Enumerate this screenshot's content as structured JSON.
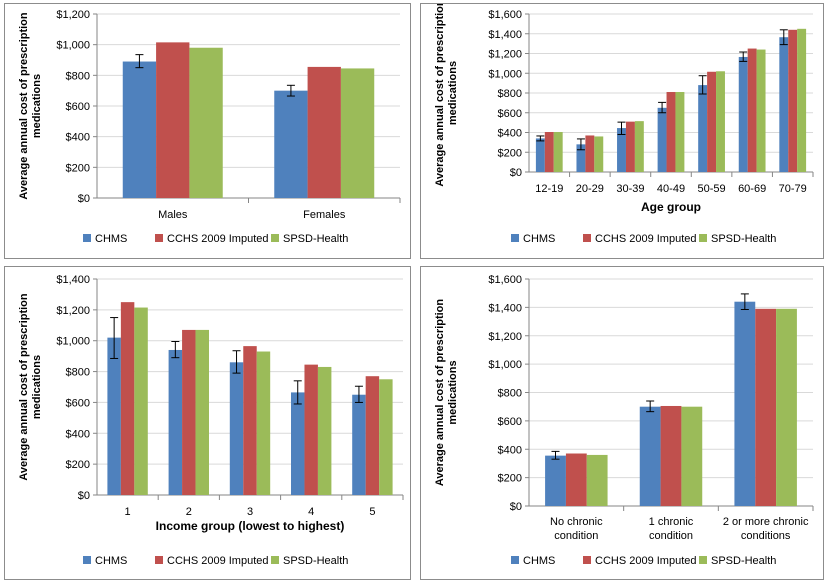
{
  "legend": [
    "CHMS",
    "CCHS 2009 Imputed",
    "SPSD-Health"
  ],
  "colors": {
    "CHMS": "#4f81bd",
    "CCHS 2009 Imputed": "#c0504d",
    "SPSD-Health": "#9bbb59",
    "axis": "#868686",
    "grid": "#d9d9d9",
    "text": "#000000"
  },
  "chart_data": [
    {
      "type": "bar",
      "title": "",
      "ylabel": "Average annual cost of prescription medications",
      "xlabel": "",
      "ylim": [
        0,
        1200
      ],
      "yticks": [
        0,
        200,
        400,
        600,
        800,
        1000,
        1200
      ],
      "ytick_labels": [
        "$0",
        "$200",
        "$400",
        "$600",
        "$800",
        "$1,000",
        "$1,200"
      ],
      "categories": [
        "Males",
        "Females"
      ],
      "series": [
        {
          "name": "CHMS",
          "values": [
            890,
            700
          ],
          "err_low": [
            850,
            665
          ],
          "err_high": [
            935,
            735
          ]
        },
        {
          "name": "CCHS 2009 Imputed",
          "values": [
            1015,
            855
          ]
        },
        {
          "name": "SPSD-Health",
          "values": [
            980,
            845
          ]
        }
      ],
      "legend_position": "bottom",
      "grid": true
    },
    {
      "type": "bar",
      "title": "",
      "ylabel": "Average annual cost of prescription medications",
      "xlabel": "Age group",
      "ylim": [
        0,
        1600
      ],
      "yticks": [
        0,
        200,
        400,
        600,
        800,
        1000,
        1200,
        1400,
        1600
      ],
      "ytick_labels": [
        "$0",
        "$200",
        "$400",
        "$600",
        "$800",
        "$1,000",
        "$1,200",
        "$1,400",
        "$1,600"
      ],
      "categories": [
        "12-19",
        "20-29",
        "30-39",
        "40-49",
        "50-59",
        "60-69",
        "70-79"
      ],
      "series": [
        {
          "name": "CHMS",
          "values": [
            340,
            280,
            445,
            650,
            880,
            1165,
            1365
          ],
          "err_low": [
            315,
            225,
            380,
            600,
            790,
            1120,
            1290
          ],
          "err_high": [
            365,
            335,
            505,
            705,
            975,
            1215,
            1440
          ]
        },
        {
          "name": "CCHS 2009 Imputed",
          "values": [
            405,
            370,
            510,
            810,
            1015,
            1250,
            1440
          ]
        },
        {
          "name": "SPSD-Health",
          "values": [
            405,
            360,
            515,
            810,
            1020,
            1240,
            1450
          ]
        }
      ],
      "legend_position": "bottom",
      "grid": true
    },
    {
      "type": "bar",
      "title": "",
      "ylabel": "Average annual cost of prescription medications",
      "xlabel": "Income group (lowest to highest)",
      "ylim": [
        0,
        1400
      ],
      "yticks": [
        0,
        200,
        400,
        600,
        800,
        1000,
        1200,
        1400
      ],
      "ytick_labels": [
        "$0",
        "$200",
        "$400",
        "$600",
        "$800",
        "$1,000",
        "$1,200",
        "$1,400"
      ],
      "categories": [
        "1",
        "2",
        "3",
        "4",
        "5"
      ],
      "series": [
        {
          "name": "CHMS",
          "values": [
            1020,
            940,
            860,
            665,
            650
          ],
          "err_low": [
            885,
            890,
            790,
            590,
            600
          ],
          "err_high": [
            1150,
            995,
            935,
            740,
            705
          ]
        },
        {
          "name": "CCHS 2009 Imputed",
          "values": [
            1250,
            1070,
            965,
            845,
            770
          ]
        },
        {
          "name": "SPSD-Health",
          "values": [
            1215,
            1070,
            930,
            830,
            750
          ]
        }
      ],
      "legend_position": "bottom",
      "grid": true
    },
    {
      "type": "bar",
      "title": "",
      "ylabel": "Average annual cost of prescription medications",
      "xlabel": "",
      "ylim": [
        0,
        1600
      ],
      "yticks": [
        0,
        200,
        400,
        600,
        800,
        1000,
        1200,
        1400,
        1600
      ],
      "ytick_labels": [
        "$0",
        "$200",
        "$400",
        "$600",
        "$800",
        "$1,000",
        "$1,200",
        "$1,400",
        "$1,600"
      ],
      "categories": [
        "No chronic condition",
        "1 chronic condition",
        "2 or more chronic conditions"
      ],
      "series": [
        {
          "name": "CHMS",
          "values": [
            355,
            700,
            1440
          ],
          "err_low": [
            330,
            665,
            1385
          ],
          "err_high": [
            385,
            740,
            1495
          ]
        },
        {
          "name": "CCHS 2009 Imputed",
          "values": [
            370,
            705,
            1390
          ]
        },
        {
          "name": "SPSD-Health",
          "values": [
            360,
            700,
            1390
          ]
        }
      ],
      "legend_position": "bottom",
      "grid": true
    }
  ]
}
